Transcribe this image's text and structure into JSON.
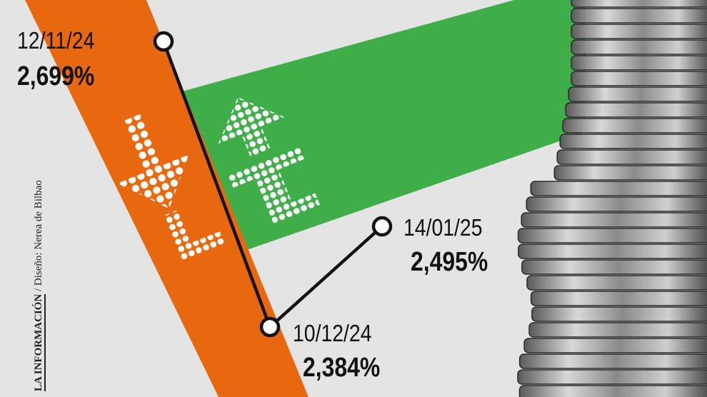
{
  "chart_data": {
    "type": "line",
    "x": [
      "12/11/24",
      "10/12/24",
      "14/01/25"
    ],
    "values": [
      2.699,
      2.384,
      2.495
    ],
    "data_labels": [
      "2,699%",
      "2,384%",
      "2,495%"
    ],
    "title": "",
    "xlabel": "",
    "ylabel": "",
    "grid": false,
    "colors": {
      "line": "#111111",
      "marker_fill": "#ffffff",
      "down_band": "#e8680f",
      "up_band": "#3fae49",
      "background": "#e4e4e4"
    }
  },
  "decor": {
    "down_arrow_icon": "dotted-arrow-down",
    "up_arrow_icon": "dotted-arrow-up",
    "coins": "coin-stack-image"
  },
  "credit": {
    "brand": "LA INFORMACIÓN",
    "separator": "/",
    "designer": "Diseño: Nerea de Bilbao"
  }
}
